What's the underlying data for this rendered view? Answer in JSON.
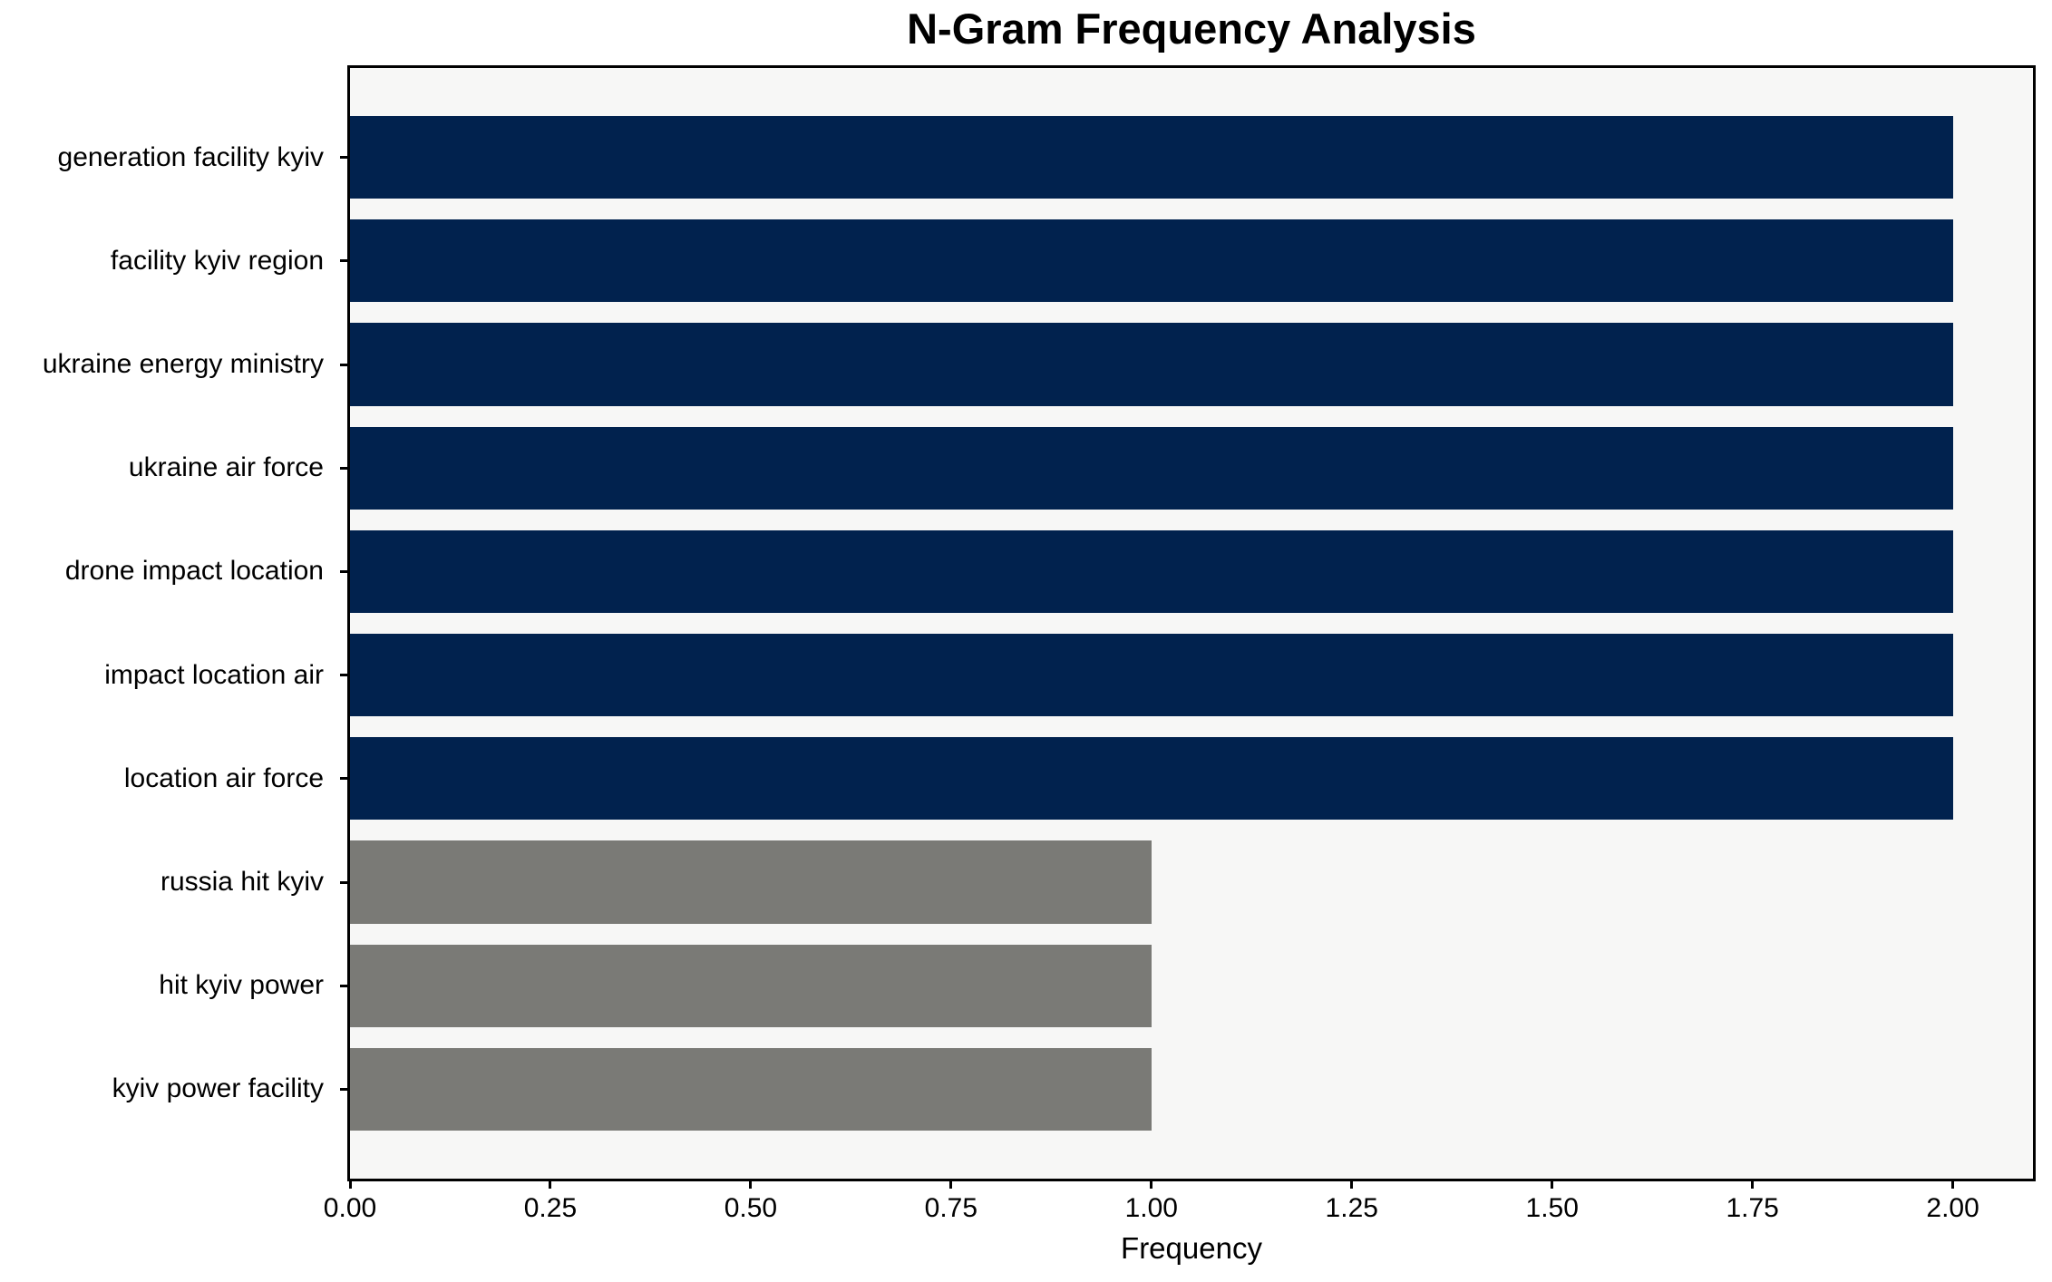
{
  "chart_data": {
    "type": "bar",
    "orientation": "horizontal",
    "title": "N-Gram Frequency Analysis",
    "xlabel": "Frequency",
    "ylabel": "",
    "categories": [
      "generation facility kyiv",
      "facility kyiv region",
      "ukraine energy ministry",
      "ukraine air force",
      "drone impact location",
      "impact location air",
      "location air force",
      "russia hit kyiv",
      "hit kyiv power",
      "kyiv power facility"
    ],
    "values": [
      2,
      2,
      2,
      2,
      2,
      2,
      2,
      1,
      1,
      1
    ],
    "bar_colors": [
      "#01224e",
      "#01224e",
      "#01224e",
      "#01224e",
      "#01224e",
      "#01224e",
      "#01224e",
      "#7a7a76",
      "#7a7a76",
      "#7a7a76"
    ],
    "xlim": [
      0,
      2.1
    ],
    "xtick_values": [
      0.0,
      0.25,
      0.5,
      0.75,
      1.0,
      1.25,
      1.5,
      1.75,
      2.0
    ],
    "xtick_labels": [
      "0.00",
      "0.25",
      "0.50",
      "0.75",
      "1.00",
      "1.25",
      "1.50",
      "1.75",
      "2.00"
    ],
    "grid": false,
    "legend": "none",
    "plot_background": "#f7f7f6",
    "figure_background": "#ffffff",
    "spine_color": "#000000",
    "colors": {
      "frequency_2_bar": "#01224e",
      "frequency_1_bar": "#7a7a76"
    }
  }
}
